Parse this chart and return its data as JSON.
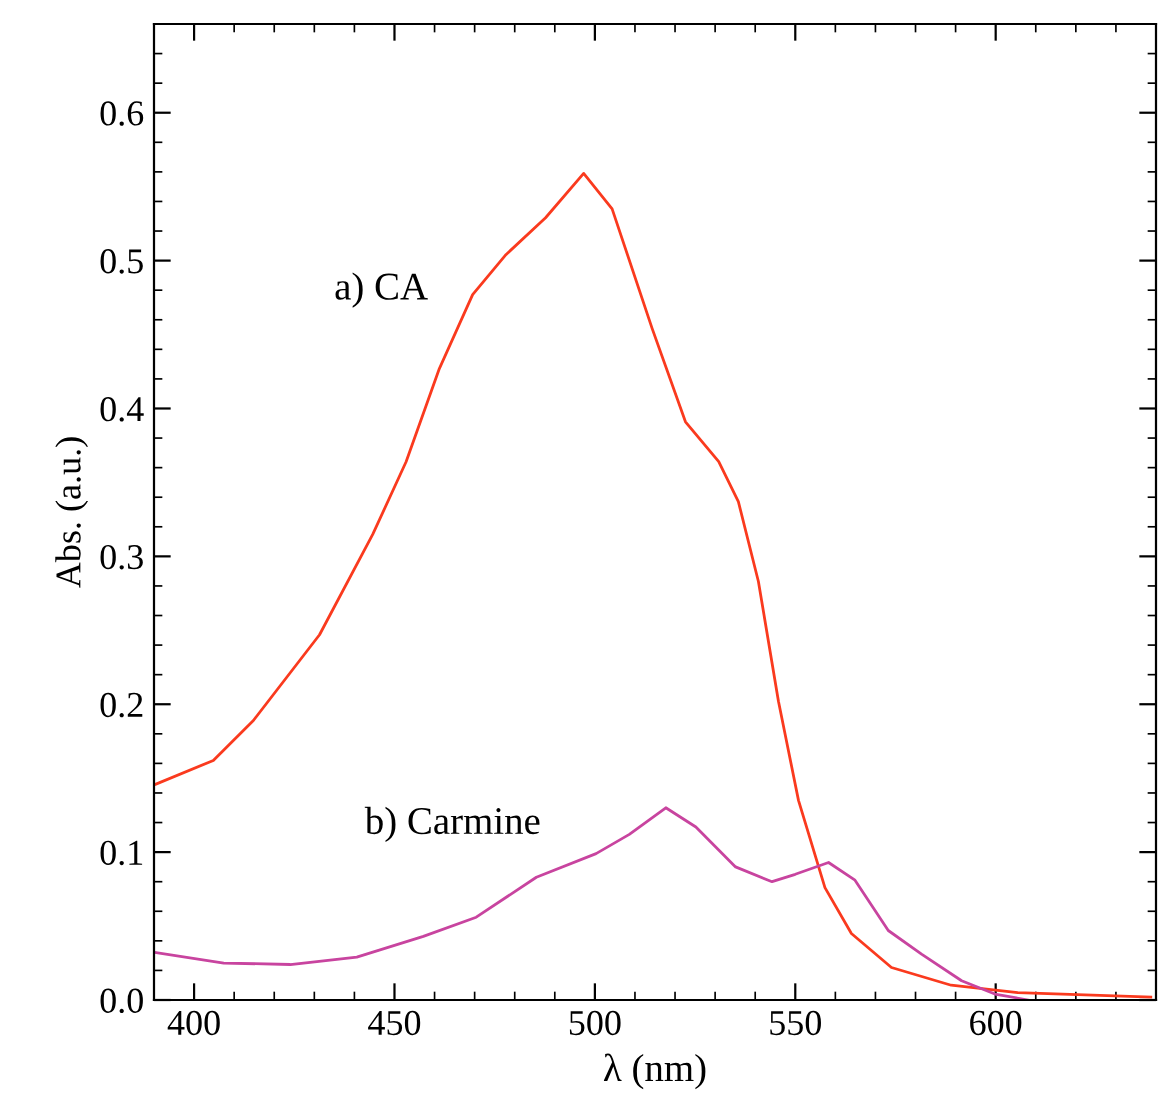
{
  "chart_data": {
    "type": "line",
    "xlabel": "λ (nm)",
    "ylabel": "Abs. (a.u.)",
    "xlim": [
      390,
      640
    ],
    "xticks": [
      400,
      450,
      500,
      550,
      600
    ],
    "ylim": [
      0,
      0.66
    ],
    "yticks": [
      {
        "value": 0,
        "label": "0.0"
      },
      0.1,
      0.2,
      0.3,
      0.4,
      0.5,
      0.6
    ],
    "grid": false,
    "legend": false,
    "marker": "none",
    "line_style": "solid",
    "series": [
      {
        "name": "a) CA",
        "color": "#fa3a1e",
        "x": [
          390.5,
          404.8,
          414.8,
          431.3,
          444.6,
          452.9,
          461.2,
          469.5,
          477.8,
          487.7,
          497.2,
          504.3,
          514.3,
          522.6,
          530.9,
          535.8,
          540.8,
          545.8,
          550.8,
          557.4,
          564.0,
          574.0,
          588.9,
          605.5,
          638.7
        ],
        "values": [
          0.146,
          0.162,
          0.189,
          0.247,
          0.315,
          0.364,
          0.427,
          0.477,
          0.504,
          0.529,
          0.559,
          0.535,
          0.454,
          0.391,
          0.364,
          0.337,
          0.283,
          0.202,
          0.135,
          0.076,
          0.045,
          0.022,
          0.01,
          0.005,
          0.002
        ]
      },
      {
        "name": "b) Carmine",
        "color": "#c8449f",
        "x": [
          390.5,
          407.4,
          424.0,
          440.6,
          457.2,
          470.4,
          485.4,
          500.3,
          508.6,
          517.7,
          525.2,
          535.1,
          544.2,
          550.0,
          558.3,
          564.9,
          573.2,
          581.5,
          591.5,
          599.8,
          608.1
        ],
        "values": [
          0.032,
          0.025,
          0.024,
          0.029,
          0.043,
          0.056,
          0.083,
          0.099,
          0.112,
          0.13,
          0.117,
          0.09,
          0.08,
          0.085,
          0.093,
          0.081,
          0.047,
          0.031,
          0.013,
          0.004,
          0.0
        ]
      }
    ]
  }
}
